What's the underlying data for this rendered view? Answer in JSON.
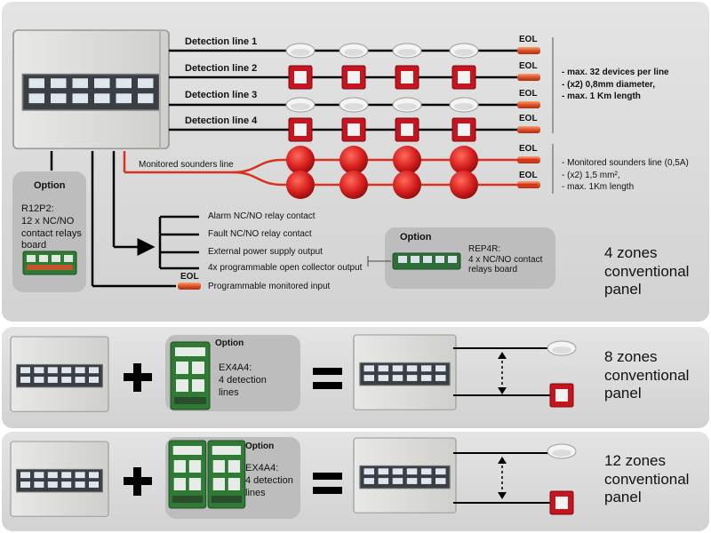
{
  "panel_main": {
    "lines": [
      "Detection line 1",
      "Detection line 2",
      "Detection line 3",
      "Detection line 4"
    ],
    "eol": "EOL",
    "line_notes": [
      "- max. 32 devices per line",
      "- (x2) 0,8mm diameter,",
      "- max. 1 Km length"
    ],
    "sounders_label": "Monitored sounders line",
    "sounder_notes": [
      "- Monitored sounders line (0,5A)",
      "- (x2) 1,5 mm²,",
      "- max. 1Km length"
    ],
    "option_left": {
      "title": "Option",
      "lines": [
        "R12P2:",
        "12 x NC/NO",
        "contact relays",
        "board"
      ]
    },
    "outputs": [
      "Alarm NC/NO relay contact",
      "Fault NC/NO relay contact",
      "External power supply output",
      "4x programmable open collector output",
      "Programmable monitored input"
    ],
    "option_right": {
      "title": "Option",
      "lines": [
        "REP4R:",
        "4 x NC/NO contact",
        "relays board"
      ]
    },
    "title_lines": [
      "4 zones",
      "conventional",
      "panel"
    ]
  },
  "panel_8": {
    "option": {
      "title": "Option",
      "lines": [
        "EX4A4:",
        "4 detection",
        "lines"
      ]
    },
    "plus": "+",
    "equals": "=",
    "title_lines": [
      "8 zones",
      "conventional",
      "panel"
    ]
  },
  "panel_12": {
    "option": {
      "title": "Option",
      "lines": [
        "EX4A4:",
        "4 detection",
        "lines"
      ]
    },
    "plus": "+",
    "equals": "=",
    "title_lines": [
      "12 zones",
      "conventional",
      "panel"
    ]
  },
  "colors": {
    "cable": "#000000",
    "sounder_line": "#d8321f",
    "sounder": "#d61e1e",
    "call_point": "#c8141e",
    "eol": "#e05028",
    "background": "#d8d8d8",
    "bubble": "#bdbdbd"
  }
}
